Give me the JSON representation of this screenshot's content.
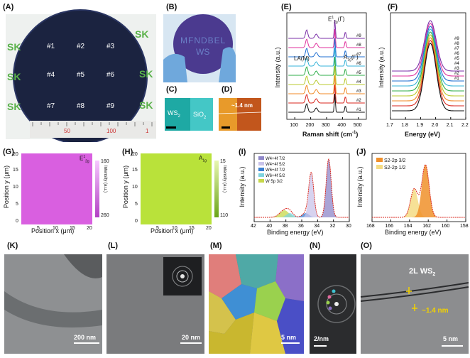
{
  "panels": {
    "A": {
      "label": "(A)",
      "logo": "SK",
      "positions": [
        "#1",
        "#2",
        "#3",
        "#4",
        "#5",
        "#6",
        "#7",
        "#8",
        "#9"
      ],
      "ruler_marks": [
        "50",
        "100",
        "1"
      ]
    },
    "B": {
      "label": "(B)",
      "watermark": [
        "MFNDBEL",
        "WS"
      ]
    },
    "C": {
      "label": "(C)",
      "left_label": "WS",
      "left_sub": "2",
      "right_label": "SiO",
      "right_sub": "2"
    },
    "D": {
      "label": "(D)",
      "annotation": "~1.4 nm"
    },
    "E": {
      "label": "(E)",
      "xlabel": "Raman shift (cm",
      "xlabel_sup": "-1",
      "xlabel_end": ")",
      "ylabel": "Intensity (a.u.)",
      "peak_la": "LA(M)",
      "peak_e2g": "E",
      "peak_e2g_sup": "1",
      "peak_e2g_sub": "2g",
      "peak_e2g_end": "(Γ)",
      "peak_a1g": "A",
      "peak_a1g_sub": "1g",
      "peak_a1g_end": "(Γ)",
      "xticks": [
        "100",
        "200",
        "300",
        "400",
        "500"
      ],
      "traces": [
        "#9",
        "#8",
        "#7",
        "#6",
        "#5",
        "#4",
        "#3",
        "#2",
        "#1"
      ]
    },
    "F": {
      "label": "(F)",
      "xlabel": "Energy (eV)",
      "ylabel": "Intensity (a.u.)",
      "xticks": [
        "1.7",
        "1.8",
        "1.9",
        "2.0",
        "2.1",
        "2.2"
      ],
      "traces": [
        "#9",
        "#8",
        "#7",
        "#6",
        "#5",
        "#4",
        "#3",
        "#2",
        "#1"
      ]
    },
    "G": {
      "label": "(G)",
      "map_label": "E",
      "map_sup": "1",
      "map_sub": "2g",
      "xlabel": "Position x (μm)",
      "ylabel": "Position y (μm)",
      "xticks": [
        "5",
        "10",
        "15",
        "20"
      ],
      "yticks": [
        "0",
        "5",
        "10",
        "15",
        "20"
      ],
      "cbar_ticks": [
        "160",
        "260"
      ],
      "cbar_label": "Intensity (a.u.)"
    },
    "H": {
      "label": "(H)",
      "map_label": "A",
      "map_sub": "1g",
      "xlabel": "Position x (μm)",
      "ylabel": "Position y (μm)",
      "xticks": [
        "5",
        "10",
        "15",
        "20"
      ],
      "yticks": [
        "0",
        "5",
        "10",
        "15",
        "20"
      ],
      "cbar_ticks": [
        "15",
        "110"
      ],
      "cbar_label": "Intensity (a.u.)"
    },
    "I": {
      "label": "(I)",
      "xlabel": "Binding energy (eV)",
      "ylabel": "Intensity (a.u.)",
      "xticks": [
        "42",
        "40",
        "38",
        "36",
        "34",
        "32",
        "30"
      ],
      "legend": [
        "W4+4f 7/2",
        "W4+4f 5/2",
        "W6+4f 7/2",
        "W6+4f 5/2",
        "W 5p 3/2"
      ]
    },
    "J": {
      "label": "(J)",
      "xlabel": "Binding energy (eV)",
      "ylabel": "Intensity (a.u.)",
      "xticks": [
        "168",
        "166",
        "164",
        "162",
        "160",
        "158"
      ],
      "legend": [
        "S2-2p 3/2",
        "S2-2p 1/2"
      ]
    },
    "K": {
      "label": "(K)",
      "scalebar": "200 nm"
    },
    "L": {
      "label": "(L)",
      "scalebar": "20 nm"
    },
    "M": {
      "label": "(M)",
      "scalebar": "5 nm"
    },
    "N": {
      "label": "(N)",
      "scalebar": "2/nm"
    },
    "O": {
      "label": "(O)",
      "scalebar": "5 nm",
      "tag": "2L WS",
      "tag_sub": "2",
      "annotation": "~1.4 nm"
    }
  },
  "colors": {
    "trace_colors": [
      "#7b2fa8",
      "#e0329e",
      "#1f6fd1",
      "#36b3d8",
      "#2fae4a",
      "#b9c92c",
      "#f08a24",
      "#d9261c",
      "#111111"
    ],
    "map_g": "#d95fe0",
    "map_h": "#b9e23a",
    "xps_fit": "#d9261c"
  }
}
